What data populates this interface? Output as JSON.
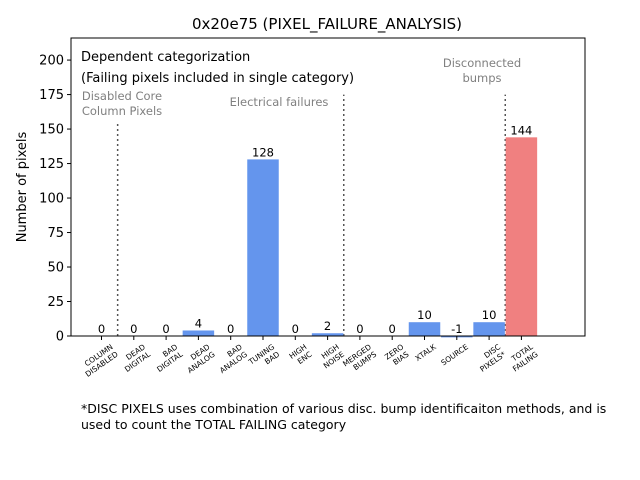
{
  "chart_data": {
    "type": "bar",
    "title": "0x20e75 (PIXEL_FAILURE_ANALYSIS)",
    "xlabel": "",
    "ylabel": "Number of pixels",
    "ylim": [
      0,
      216
    ],
    "yticks": [
      0,
      25,
      50,
      75,
      100,
      125,
      150,
      175,
      200
    ],
    "categories": [
      "COLUMN\nDISABLED",
      "DEAD\nDIGITAL",
      "BAD\nDIGITAL",
      "DEAD\nANALOG",
      "BAD\nANALOG",
      "TUNING\nBAD",
      "HIGH\nENC",
      "HIGH\nNOISE",
      "MERGED\nBUMPS",
      "ZERO\nBIAS",
      "XTALK",
      "SOURCE",
      "DISC\nPIXELS*",
      "TOTAL\nFAILING"
    ],
    "values": [
      0,
      0,
      0,
      4,
      0,
      128,
      0,
      2,
      0,
      0,
      10,
      -1,
      10,
      144
    ],
    "value_labels": [
      "0",
      "0",
      "0",
      "4",
      "0",
      "128",
      "0",
      "2",
      "0",
      "0",
      "10",
      "-1",
      "10",
      "144"
    ],
    "bar_colors": [
      "#6495ed",
      "#6495ed",
      "#6495ed",
      "#6495ed",
      "#6495ed",
      "#6495ed",
      "#6495ed",
      "#6495ed",
      "#6495ed",
      "#6495ed",
      "#6495ed",
      "#6495ed",
      "#6495ed",
      "#f08080"
    ],
    "separators_after_category": [
      0,
      7,
      12
    ],
    "legend_box": {
      "line1": "Dependent categorization",
      "line2": "(Failing pixels included in single category)"
    },
    "group_labels": [
      {
        "lines": [
          "Disabled Core",
          "Column Pixels"
        ]
      },
      {
        "lines": [
          "Electrical failures"
        ]
      },
      {
        "lines": [
          "Disconnected",
          "bumps"
        ]
      }
    ],
    "footnote": "*DISC PIXELS uses combination of various disc. bump identificaiton methods, and is used to count the TOTAL FAILING category"
  }
}
